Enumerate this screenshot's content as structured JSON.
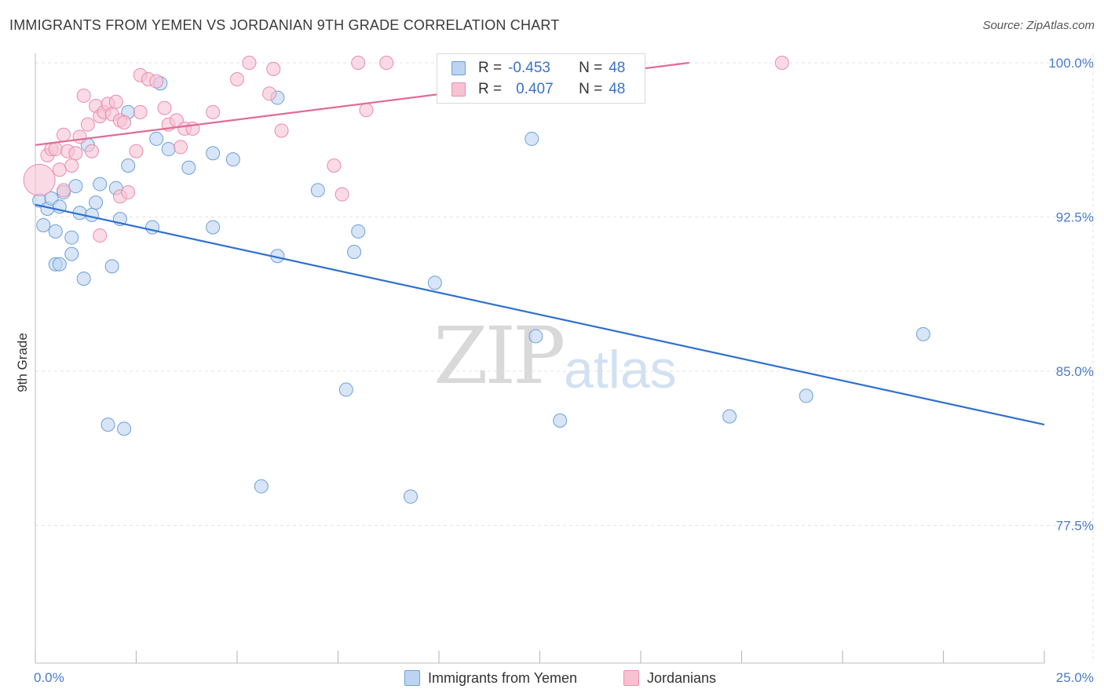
{
  "title": "IMMIGRANTS FROM YEMEN VS JORDANIAN 9TH GRADE CORRELATION CHART",
  "source": "Source: ZipAtlas.com",
  "watermark": {
    "zip": "ZIP",
    "atlas": "atlas"
  },
  "legend": {
    "rows": [
      {
        "r_label": "R =",
        "r_value": "-0.453",
        "n_label": "N =",
        "n_value": "48"
      },
      {
        "r_label": "R =",
        "r_value": "0.407",
        "n_label": "N =",
        "n_value": "48"
      }
    ]
  },
  "bottom_legend": {
    "series1": "Immigrants from Yemen",
    "series2": "Jordanians"
  },
  "colors": {
    "blue_fill": "#bcd4f2",
    "blue_stroke": "#6d9fd9",
    "blue_line": "#2f70d0",
    "pink_fill": "#f7c3d3",
    "pink_stroke": "#e98cab",
    "pink_line": "#e46a93",
    "grid": "#e3e3e3",
    "tick_text": "#4a7cc7"
  },
  "chart_data": {
    "type": "scatter",
    "title": "IMMIGRANTS FROM YEMEN VS JORDANIAN 9TH GRADE CORRELATION CHART",
    "xlabel": "",
    "ylabel": "9th Grade",
    "xlim": [
      0,
      25
    ],
    "ylim": [
      70.8,
      100.0
    ],
    "x_tick_labels": [
      "0.0%",
      "25.0%"
    ],
    "y_ticks": [
      77.5,
      85.0,
      92.5,
      100.0
    ],
    "y_tick_labels": [
      "77.5%",
      "85.0%",
      "92.5%",
      "100.0%"
    ],
    "series": [
      {
        "name": "Immigrants from Yemen",
        "R": -0.453,
        "N": 48,
        "trend": {
          "x": [
            0,
            25
          ],
          "y": [
            93.1,
            82.4
          ]
        },
        "points": [
          [
            0.1,
            93.3
          ],
          [
            0.2,
            92.1
          ],
          [
            0.3,
            92.9
          ],
          [
            0.4,
            93.4
          ],
          [
            0.5,
            90.2
          ],
          [
            0.5,
            91.8
          ],
          [
            0.6,
            90.2
          ],
          [
            0.6,
            93.0
          ],
          [
            0.7,
            93.7
          ],
          [
            0.9,
            90.7
          ],
          [
            0.9,
            91.5
          ],
          [
            1.0,
            94.0
          ],
          [
            1.1,
            92.7
          ],
          [
            1.2,
            89.5
          ],
          [
            1.3,
            96.0
          ],
          [
            1.4,
            92.6
          ],
          [
            1.5,
            93.2
          ],
          [
            1.6,
            94.1
          ],
          [
            1.8,
            82.4
          ],
          [
            1.9,
            90.1
          ],
          [
            2.0,
            93.9
          ],
          [
            2.1,
            92.4
          ],
          [
            2.2,
            82.2
          ],
          [
            2.3,
            95.0
          ],
          [
            2.3,
            97.6
          ],
          [
            2.9,
            92.0
          ],
          [
            3.0,
            96.3
          ],
          [
            3.1,
            99.0
          ],
          [
            3.3,
            95.8
          ],
          [
            3.8,
            94.9
          ],
          [
            4.4,
            95.6
          ],
          [
            4.4,
            92.0
          ],
          [
            4.9,
            95.3
          ],
          [
            5.6,
            79.4
          ],
          [
            6.0,
            90.6
          ],
          [
            6.0,
            98.3
          ],
          [
            7.0,
            93.8
          ],
          [
            7.7,
            84.1
          ],
          [
            7.9,
            90.8
          ],
          [
            8.0,
            91.8
          ],
          [
            9.3,
            78.9
          ],
          [
            9.9,
            89.3
          ],
          [
            12.3,
            96.3
          ],
          [
            12.4,
            86.7
          ],
          [
            13.0,
            82.6
          ],
          [
            17.2,
            82.8
          ],
          [
            19.1,
            83.8
          ],
          [
            22.0,
            86.8
          ]
        ]
      },
      {
        "name": "Jordanians",
        "R": 0.407,
        "N": 48,
        "trend": {
          "x": [
            0,
            16.2
          ],
          "y": [
            96.0,
            100.0
          ]
        },
        "points": [
          [
            0.1,
            94.3
          ],
          [
            0.3,
            95.5
          ],
          [
            0.4,
            95.8
          ],
          [
            0.5,
            95.8
          ],
          [
            0.6,
            94.8
          ],
          [
            0.7,
            93.8
          ],
          [
            0.7,
            96.5
          ],
          [
            0.8,
            95.7
          ],
          [
            0.9,
            95.0
          ],
          [
            1.0,
            95.6
          ],
          [
            1.1,
            96.4
          ],
          [
            1.2,
            98.4
          ],
          [
            1.3,
            97.0
          ],
          [
            1.4,
            95.7
          ],
          [
            1.5,
            97.9
          ],
          [
            1.6,
            91.6
          ],
          [
            1.6,
            97.4
          ],
          [
            1.7,
            97.6
          ],
          [
            1.8,
            98.0
          ],
          [
            1.9,
            97.5
          ],
          [
            2.0,
            98.1
          ],
          [
            2.1,
            97.2
          ],
          [
            2.1,
            93.5
          ],
          [
            2.2,
            97.1
          ],
          [
            2.3,
            93.7
          ],
          [
            2.5,
            95.7
          ],
          [
            2.6,
            99.4
          ],
          [
            2.6,
            97.6
          ],
          [
            2.8,
            99.2
          ],
          [
            3.0,
            99.1
          ],
          [
            3.2,
            97.8
          ],
          [
            3.3,
            97.0
          ],
          [
            3.5,
            97.2
          ],
          [
            3.6,
            95.9
          ],
          [
            3.7,
            96.8
          ],
          [
            3.9,
            96.8
          ],
          [
            4.4,
            97.6
          ],
          [
            5.0,
            99.2
          ],
          [
            5.3,
            100.0
          ],
          [
            5.8,
            98.5
          ],
          [
            5.9,
            99.7
          ],
          [
            6.1,
            96.7
          ],
          [
            7.4,
            95.0
          ],
          [
            7.6,
            93.6
          ],
          [
            8.0,
            100.0
          ],
          [
            8.2,
            97.7
          ],
          [
            8.7,
            100.0
          ],
          [
            18.5,
            100.0
          ]
        ]
      }
    ]
  }
}
